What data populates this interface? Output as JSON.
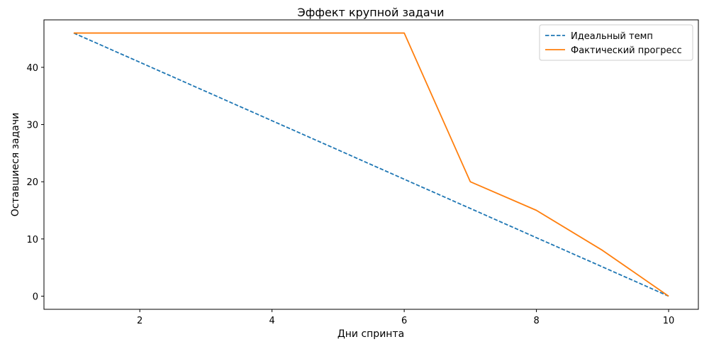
{
  "chart_data": {
    "type": "line",
    "title": "Эффект крупной задачи",
    "xlabel": "Дни спринта",
    "ylabel": "Оставшиеся задачи",
    "xlim": [
      0.55,
      10.45
    ],
    "ylim": [
      -2.3,
      48.3
    ],
    "xticks": [
      2,
      4,
      6,
      8,
      10
    ],
    "yticks": [
      0,
      10,
      20,
      30,
      40
    ],
    "grid": false,
    "legend_position": "top-right",
    "series": [
      {
        "name": "Идеальный темп",
        "style": "dashed",
        "color": "#1f77b4",
        "x": [
          1,
          2,
          3,
          4,
          5,
          6,
          7,
          8,
          9,
          10
        ],
        "y": [
          46,
          40.89,
          35.78,
          30.67,
          25.56,
          20.44,
          15.33,
          10.22,
          5.11,
          0
        ]
      },
      {
        "name": "Фактический прогресс",
        "style": "solid",
        "color": "#ff7f0e",
        "x": [
          1,
          2,
          3,
          4,
          5,
          6,
          7,
          8,
          9,
          10
        ],
        "y": [
          46,
          46,
          46,
          46,
          46,
          46,
          20,
          15,
          8,
          0
        ]
      }
    ]
  }
}
